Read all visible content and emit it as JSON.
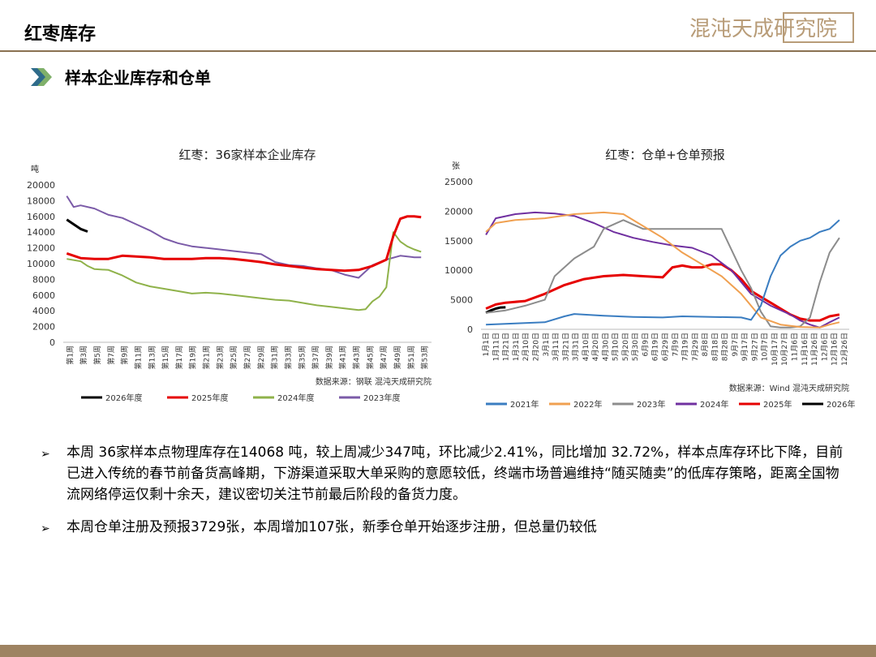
{
  "header": {
    "page_title": "红枣库存",
    "logo_text": "混沌天成研究院",
    "section_title": "样本企业库存和仓单"
  },
  "colors": {
    "accent": "#8a7152",
    "bar": "#9e8362"
  },
  "chart_data": [
    {
      "type": "line",
      "title": "红枣：36家样本企业库存",
      "ylabel": "吨",
      "ylim": [
        0,
        20000
      ],
      "yticks": [
        "20000",
        "18000",
        "16000",
        "14000",
        "12000",
        "10000",
        "8000",
        "6000",
        "4000",
        "2000",
        "0"
      ],
      "xtick_labels": [
        "第1周",
        "第3周",
        "第5周",
        "第7周",
        "第9周",
        "第11周",
        "第13周",
        "第15周",
        "第17周",
        "第19周",
        "第21周",
        "第23周",
        "第25周",
        "第27周",
        "第29周",
        "第31周",
        "第33周",
        "第35周",
        "第37周",
        "第39周",
        "第41周",
        "第43周",
        "第45周",
        "第47周",
        "第49周",
        "第51周",
        "第53周"
      ],
      "source": "数据来源：钢联  混沌天成研究院",
      "series": [
        {
          "name": "2026年度",
          "color": "#000000",
          "x": [
            1,
            2,
            3,
            4
          ],
          "values": [
            15600,
            15000,
            14400,
            14068
          ]
        },
        {
          "name": "2025年度",
          "color": "#e60000",
          "x": [
            1,
            3,
            5,
            7,
            9,
            11,
            13,
            15,
            17,
            19,
            21,
            23,
            25,
            27,
            29,
            31,
            33,
            35,
            37,
            39,
            41,
            43,
            45,
            47,
            48,
            49,
            50,
            51,
            52
          ],
          "values": [
            11300,
            10700,
            10600,
            10600,
            11000,
            10900,
            10800,
            10600,
            10600,
            10600,
            10700,
            10700,
            10600,
            10400,
            10200,
            9900,
            9700,
            9500,
            9300,
            9200,
            9100,
            9200,
            9700,
            10500,
            13500,
            15700,
            16000,
            16000,
            15900
          ]
        },
        {
          "name": "2024年度",
          "color": "#8fb24a",
          "x": [
            1,
            3,
            4,
            5,
            7,
            9,
            11,
            13,
            15,
            17,
            19,
            21,
            23,
            25,
            27,
            29,
            31,
            33,
            35,
            37,
            39,
            41,
            43,
            44,
            45,
            46,
            47,
            48,
            49,
            50,
            51,
            52
          ],
          "values": [
            10600,
            10300,
            9700,
            9300,
            9200,
            8500,
            7600,
            7100,
            6800,
            6500,
            6200,
            6300,
            6200,
            6000,
            5800,
            5600,
            5400,
            5300,
            5000,
            4700,
            4500,
            4300,
            4100,
            4200,
            5200,
            5800,
            7000,
            14000,
            12800,
            12200,
            11800,
            11500
          ]
        },
        {
          "name": "2023年度",
          "color": "#7b5ba8",
          "x": [
            1,
            2,
            3,
            5,
            7,
            9,
            11,
            13,
            15,
            17,
            19,
            21,
            23,
            25,
            27,
            29,
            31,
            33,
            35,
            37,
            39,
            41,
            43,
            45,
            47,
            49,
            51,
            52
          ],
          "values": [
            18600,
            17200,
            17400,
            17000,
            16200,
            15800,
            15000,
            14200,
            13200,
            12600,
            12200,
            12000,
            11800,
            11600,
            11400,
            11200,
            10200,
            9800,
            9700,
            9400,
            9200,
            8600,
            8200,
            9800,
            10500,
            11000,
            10800,
            10800
          ]
        }
      ]
    },
    {
      "type": "line",
      "title": "红枣：仓单+仓单预报",
      "ylabel": "张",
      "ylim": [
        0,
        25000
      ],
      "yticks": [
        "25000",
        "20000",
        "15000",
        "10000",
        "5000",
        "0"
      ],
      "xtick_labels": [
        "1月1日",
        "1月11日",
        "1月21日",
        "1月31日",
        "2月10日",
        "2月20日",
        "3月1日",
        "3月11日",
        "3月21日",
        "3月31日",
        "4月10日",
        "4月20日",
        "4月30日",
        "5月10日",
        "5月20日",
        "5月30日",
        "6月9日",
        "6月19日",
        "6月29日",
        "7月9日",
        "7月19日",
        "7月29日",
        "8月8日",
        "8月18日",
        "8月28日",
        "9月7日",
        "9月17日",
        "9月27日",
        "10月7日",
        "10月17日",
        "10月27日",
        "11月6日",
        "11月16日",
        "11月26日",
        "12月6日",
        "12月16日",
        "12月26日"
      ],
      "source": "数据来源：Wind  混沌天成研究院",
      "series": [
        {
          "name": "2021年",
          "color": "#3a7dc1",
          "x": [
            0,
            30,
            60,
            80,
            90,
            120,
            150,
            180,
            200,
            230,
            260,
            270,
            280,
            290,
            300,
            310,
            320,
            330,
            340,
            350,
            360
          ],
          "values": [
            800,
            1000,
            1200,
            2200,
            2600,
            2300,
            2100,
            2000,
            2200,
            2100,
            2000,
            1600,
            4000,
            9000,
            12500,
            14000,
            15000,
            15500,
            16500,
            17000,
            18500
          ]
        },
        {
          "name": "2022年",
          "color": "#f0a050",
          "x": [
            0,
            10,
            30,
            60,
            90,
            120,
            140,
            160,
            180,
            200,
            220,
            240,
            260,
            280,
            300,
            320,
            340,
            350,
            360
          ],
          "values": [
            16500,
            18000,
            18500,
            18800,
            19500,
            19800,
            19500,
            17500,
            15500,
            13000,
            11000,
            9000,
            6000,
            2000,
            800,
            400,
            300,
            800,
            1200
          ]
        },
        {
          "name": "2023年",
          "color": "#8c8c8c",
          "x": [
            0,
            20,
            40,
            60,
            70,
            90,
            110,
            120,
            140,
            160,
            180,
            200,
            220,
            240,
            250,
            260,
            270,
            280,
            290,
            300,
            310,
            320,
            330,
            340,
            350,
            360
          ],
          "values": [
            2800,
            3200,
            4000,
            5000,
            9000,
            12000,
            14000,
            17000,
            18500,
            17000,
            17000,
            17000,
            17000,
            17000,
            13500,
            10000,
            7000,
            3000,
            500,
            300,
            300,
            500,
            2000,
            8000,
            13000,
            15500
          ]
        },
        {
          "name": "2024年",
          "color": "#7030a0",
          "x": [
            0,
            10,
            30,
            50,
            70,
            90,
            110,
            130,
            150,
            170,
            190,
            210,
            230,
            250,
            270,
            290,
            310,
            320,
            330,
            340,
            350,
            360
          ],
          "values": [
            16000,
            18800,
            19500,
            19800,
            19600,
            19200,
            18000,
            16500,
            15500,
            14800,
            14200,
            13800,
            12500,
            10000,
            6000,
            4000,
            2500,
            1500,
            800,
            300,
            1200,
            2000
          ]
        },
        {
          "name": "2025年",
          "color": "#e60000",
          "x": [
            0,
            10,
            20,
            40,
            60,
            80,
            100,
            120,
            140,
            160,
            180,
            190,
            200,
            210,
            220,
            230,
            240,
            250,
            260,
            270,
            280,
            290,
            300,
            310,
            320,
            330,
            340,
            350,
            360
          ],
          "values": [
            3500,
            4200,
            4500,
            4800,
            6000,
            7500,
            8500,
            9000,
            9200,
            9000,
            8800,
            10500,
            10800,
            10500,
            10500,
            11000,
            11000,
            10000,
            8500,
            6500,
            5500,
            4500,
            3500,
            2500,
            1800,
            1500,
            1500,
            2200,
            2500
          ]
        },
        {
          "name": "2026年",
          "color": "#000000",
          "x": [
            0,
            5,
            10,
            15,
            20
          ],
          "values": [
            2800,
            3200,
            3500,
            3700,
            3729
          ]
        }
      ]
    }
  ],
  "bullets": [
    "本周 36家样本点物理库存在14068 吨，较上周减少347吨，环比减少2.41%，同比增加 32.72%，样本点库存环比下降，目前已进入传统的春节前备货高峰期，下游渠道采取大单采购的意愿较低，终端市场普遍维持“随买随卖”的低库存策略，距离全国物流网络停运仅剩十余天，建议密切关注节前最后阶段的备货力度。",
    "本周仓单注册及预报3729张，本周增加107张，新季仓单开始逐步注册，但总量仍较低"
  ]
}
